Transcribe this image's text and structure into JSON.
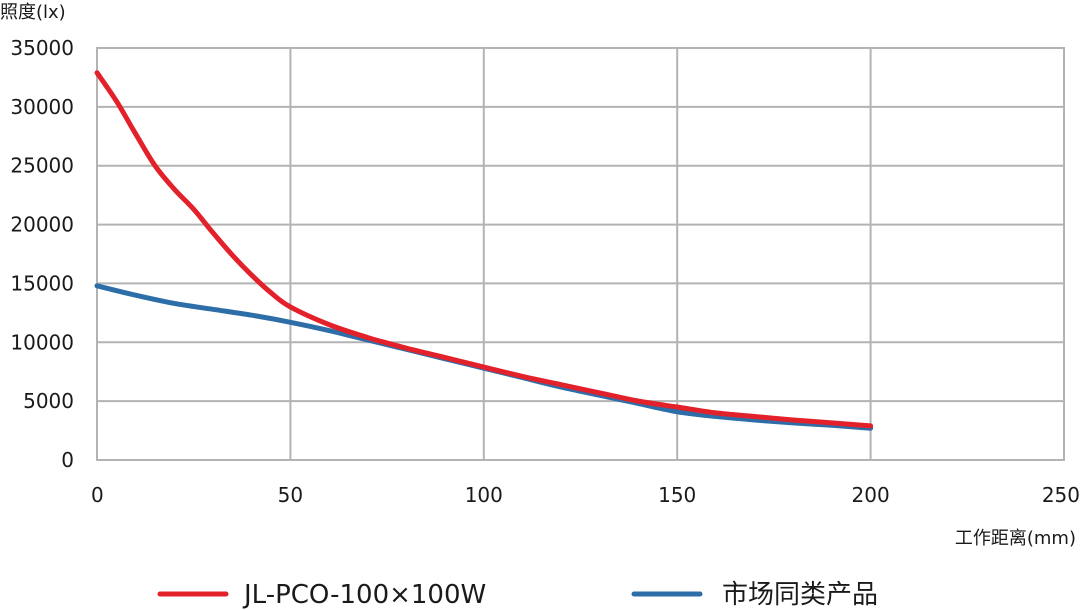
{
  "chart_data": {
    "type": "line",
    "ylabel": "照度(lx)",
    "xlabel": "工作距离(mm)",
    "xlim": [
      0,
      250
    ],
    "ylim": [
      0,
      35000
    ],
    "xticks": [
      0,
      50,
      100,
      150,
      200,
      250
    ],
    "yticks": [
      0,
      5000,
      10000,
      15000,
      20000,
      25000,
      30000,
      35000
    ],
    "grid": true,
    "legend_position": "bottom",
    "series": [
      {
        "name": "JL-PCO-100×100W",
        "color": "#e3212a",
        "points": [
          [
            0,
            32900
          ],
          [
            5,
            30500
          ],
          [
            10,
            27700
          ],
          [
            15,
            25000
          ],
          [
            20,
            23000
          ],
          [
            25,
            21300
          ],
          [
            30,
            19300
          ],
          [
            35,
            17400
          ],
          [
            40,
            15700
          ],
          [
            45,
            14200
          ],
          [
            50,
            13000
          ],
          [
            60,
            11500
          ],
          [
            70,
            10400
          ],
          [
            80,
            9500
          ],
          [
            90,
            8700
          ],
          [
            100,
            7900
          ],
          [
            110,
            7100
          ],
          [
            120,
            6400
          ],
          [
            130,
            5700
          ],
          [
            140,
            5000
          ],
          [
            150,
            4500
          ],
          [
            160,
            4000
          ],
          [
            170,
            3700
          ],
          [
            180,
            3400
          ],
          [
            190,
            3150
          ],
          [
            200,
            2900
          ]
        ]
      },
      {
        "name": "市场同类产品",
        "color": "#2e6ea8",
        "points": [
          [
            0,
            14800
          ],
          [
            10,
            14000
          ],
          [
            20,
            13300
          ],
          [
            30,
            12800
          ],
          [
            40,
            12300
          ],
          [
            50,
            11700
          ],
          [
            60,
            11000
          ],
          [
            70,
            10200
          ],
          [
            80,
            9400
          ],
          [
            90,
            8600
          ],
          [
            100,
            7800
          ],
          [
            110,
            7000
          ],
          [
            120,
            6200
          ],
          [
            130,
            5500
          ],
          [
            140,
            4800
          ],
          [
            150,
            4100
          ],
          [
            160,
            3700
          ],
          [
            170,
            3400
          ],
          [
            180,
            3150
          ],
          [
            190,
            2950
          ],
          [
            200,
            2700
          ]
        ]
      }
    ]
  }
}
